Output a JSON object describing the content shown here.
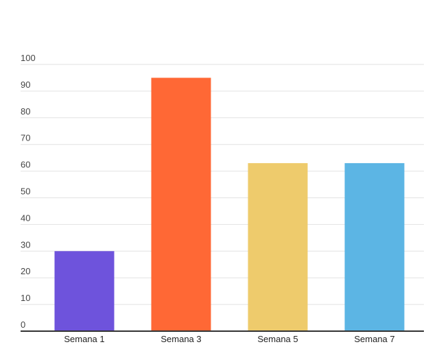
{
  "chart_data": {
    "type": "bar",
    "categories": [
      "Semana 1",
      "Semana 3",
      "Semana 5",
      "Semana 7"
    ],
    "values": [
      30,
      95,
      63,
      63
    ],
    "colors": [
      "#6e53dc",
      "#ff6835",
      "#eecb6c",
      "#5cb5e4"
    ],
    "title": "",
    "xlabel": "",
    "ylabel": "",
    "ylim": [
      0,
      100
    ],
    "yticks": [
      0,
      10,
      20,
      30,
      40,
      50,
      60,
      70,
      80,
      90,
      100
    ],
    "grid": true,
    "legend": "none"
  }
}
